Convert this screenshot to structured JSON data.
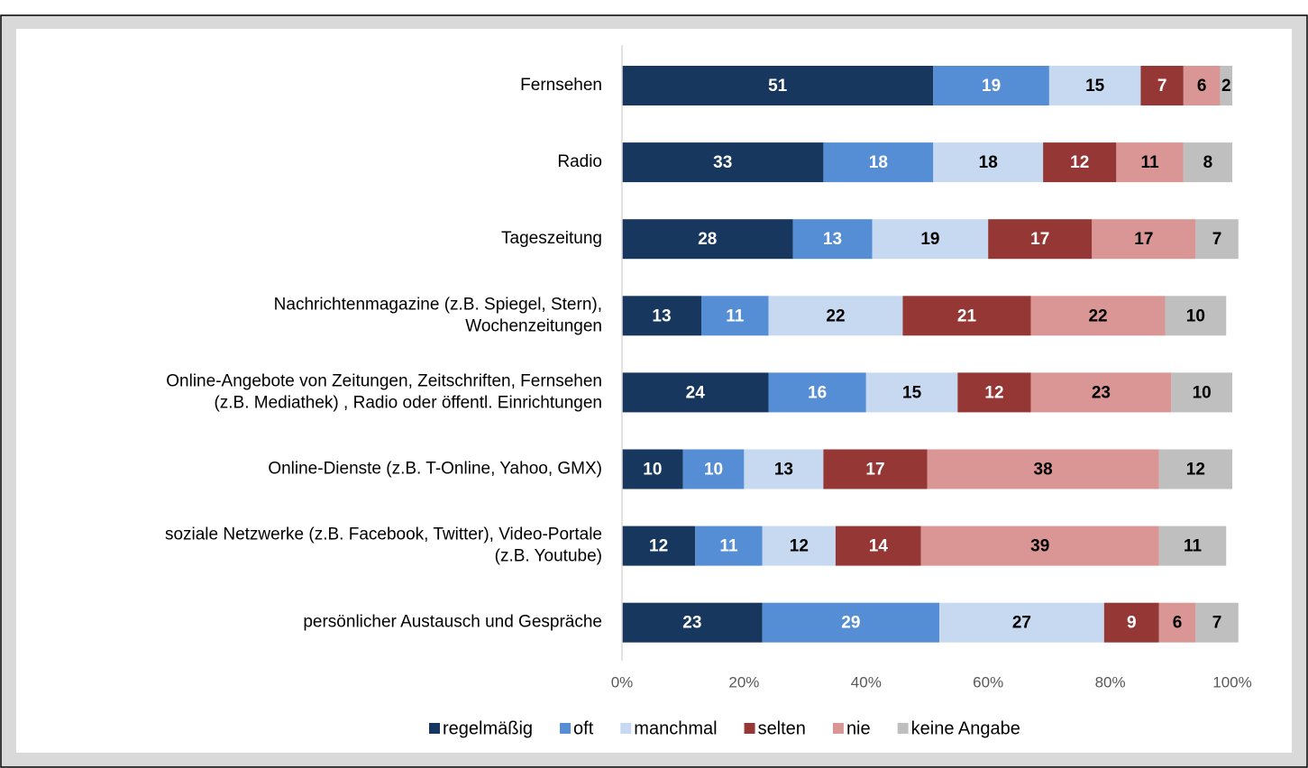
{
  "chart_data": {
    "type": "stacked_barh",
    "categories": [
      [
        "Fernsehen"
      ],
      [
        "Radio"
      ],
      [
        "Tageszeitung"
      ],
      [
        "Nachrichtenmagazine (z.B. Spiegel, Stern),",
        "Wochenzeitungen"
      ],
      [
        "Online-Angebote von Zeitungen, Zeitschriften, Fernsehen",
        "(z.B. Mediathek) , Radio oder öffentl. Einrichtungen"
      ],
      [
        "Online-Dienste (z.B. T-Online, Yahoo, GMX)"
      ],
      [
        "soziale Netzwerke (z.B. Facebook, Twitter), Video-Portale",
        "(z.B. Youtube)"
      ],
      [
        "persönlicher Austausch und Gespräche"
      ]
    ],
    "series": [
      {
        "name": "regelmäßig",
        "color": "#17375e",
        "label_color": "#ffffff",
        "values": [
          51,
          33,
          28,
          13,
          24,
          10,
          12,
          23
        ]
      },
      {
        "name": "oft",
        "color": "#558ed5",
        "label_color": "#ffffff",
        "values": [
          19,
          18,
          13,
          11,
          16,
          10,
          11,
          29
        ]
      },
      {
        "name": "manchmal",
        "color": "#c6d9f1",
        "label_color": "#000000",
        "values": [
          15,
          18,
          19,
          22,
          15,
          13,
          12,
          27
        ]
      },
      {
        "name": "selten",
        "color": "#953735",
        "label_color": "#ffffff",
        "values": [
          7,
          12,
          17,
          21,
          12,
          17,
          14,
          9
        ]
      },
      {
        "name": "nie",
        "color": "#d99694",
        "label_color": "#000000",
        "values": [
          6,
          11,
          17,
          22,
          23,
          38,
          39,
          6
        ]
      },
      {
        "name": "keine Angabe",
        "color": "#bfbfbf",
        "label_color": "#000000",
        "values": [
          2,
          8,
          7,
          10,
          10,
          12,
          11,
          7
        ]
      }
    ],
    "xlim": [
      0,
      100
    ],
    "xticks": [
      {
        "value": 0,
        "label": "0%"
      },
      {
        "value": 20,
        "label": "20%"
      },
      {
        "value": 40,
        "label": "40%"
      },
      {
        "value": 60,
        "label": "60%"
      },
      {
        "value": 80,
        "label": "80%"
      },
      {
        "value": 100,
        "label": "100%"
      }
    ],
    "legend": "bottom"
  }
}
